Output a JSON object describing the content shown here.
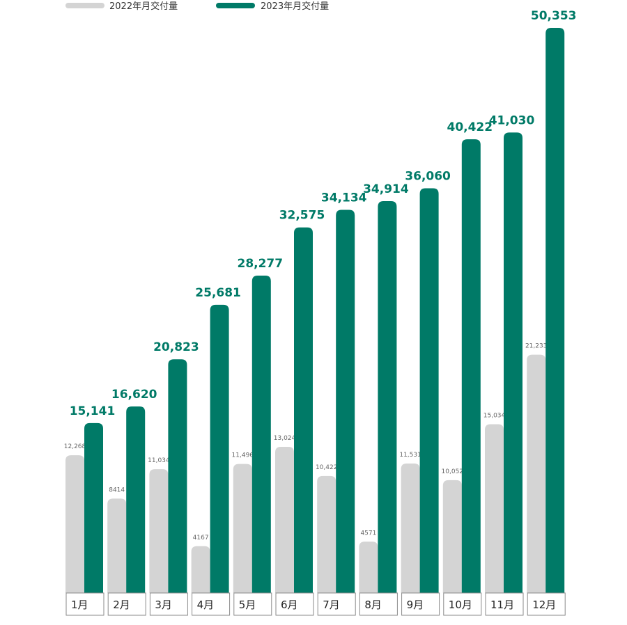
{
  "chart_data": {
    "type": "bar",
    "title": "",
    "xlabel": "",
    "ylabel": "",
    "grid": false,
    "legend": "top-left",
    "categories": [
      "1月",
      "2月",
      "3月",
      "4月",
      "5月",
      "6月",
      "7月",
      "8月",
      "9月",
      "10月",
      "11月",
      "12月"
    ],
    "series": [
      {
        "name": "2022年月交付量",
        "color": "#d4d4d4",
        "values": [
          12268,
          8414,
          11034,
          4167,
          11496,
          13024,
          10422,
          4571,
          11531,
          10052,
          15034,
          21233
        ],
        "labels": [
          "12,268",
          "8414",
          "11,034",
          "4167",
          "11,496",
          "13,024",
          "10,422",
          "4571",
          "11,531",
          "10,052",
          "15,034",
          "21,233"
        ]
      },
      {
        "name": "2023年月交付量",
        "color": "#007a67",
        "values": [
          15141,
          16620,
          20823,
          25681,
          28277,
          32575,
          34134,
          34914,
          36060,
          40422,
          41030,
          50353
        ],
        "labels": [
          "15,141",
          "16,620",
          "20,823",
          "25,681",
          "28,277",
          "32,575",
          "34,134",
          "34,914",
          "36,060",
          "40,422",
          "41,030",
          "50,353"
        ]
      }
    ],
    "ylim": [
      0,
      55000
    ]
  }
}
